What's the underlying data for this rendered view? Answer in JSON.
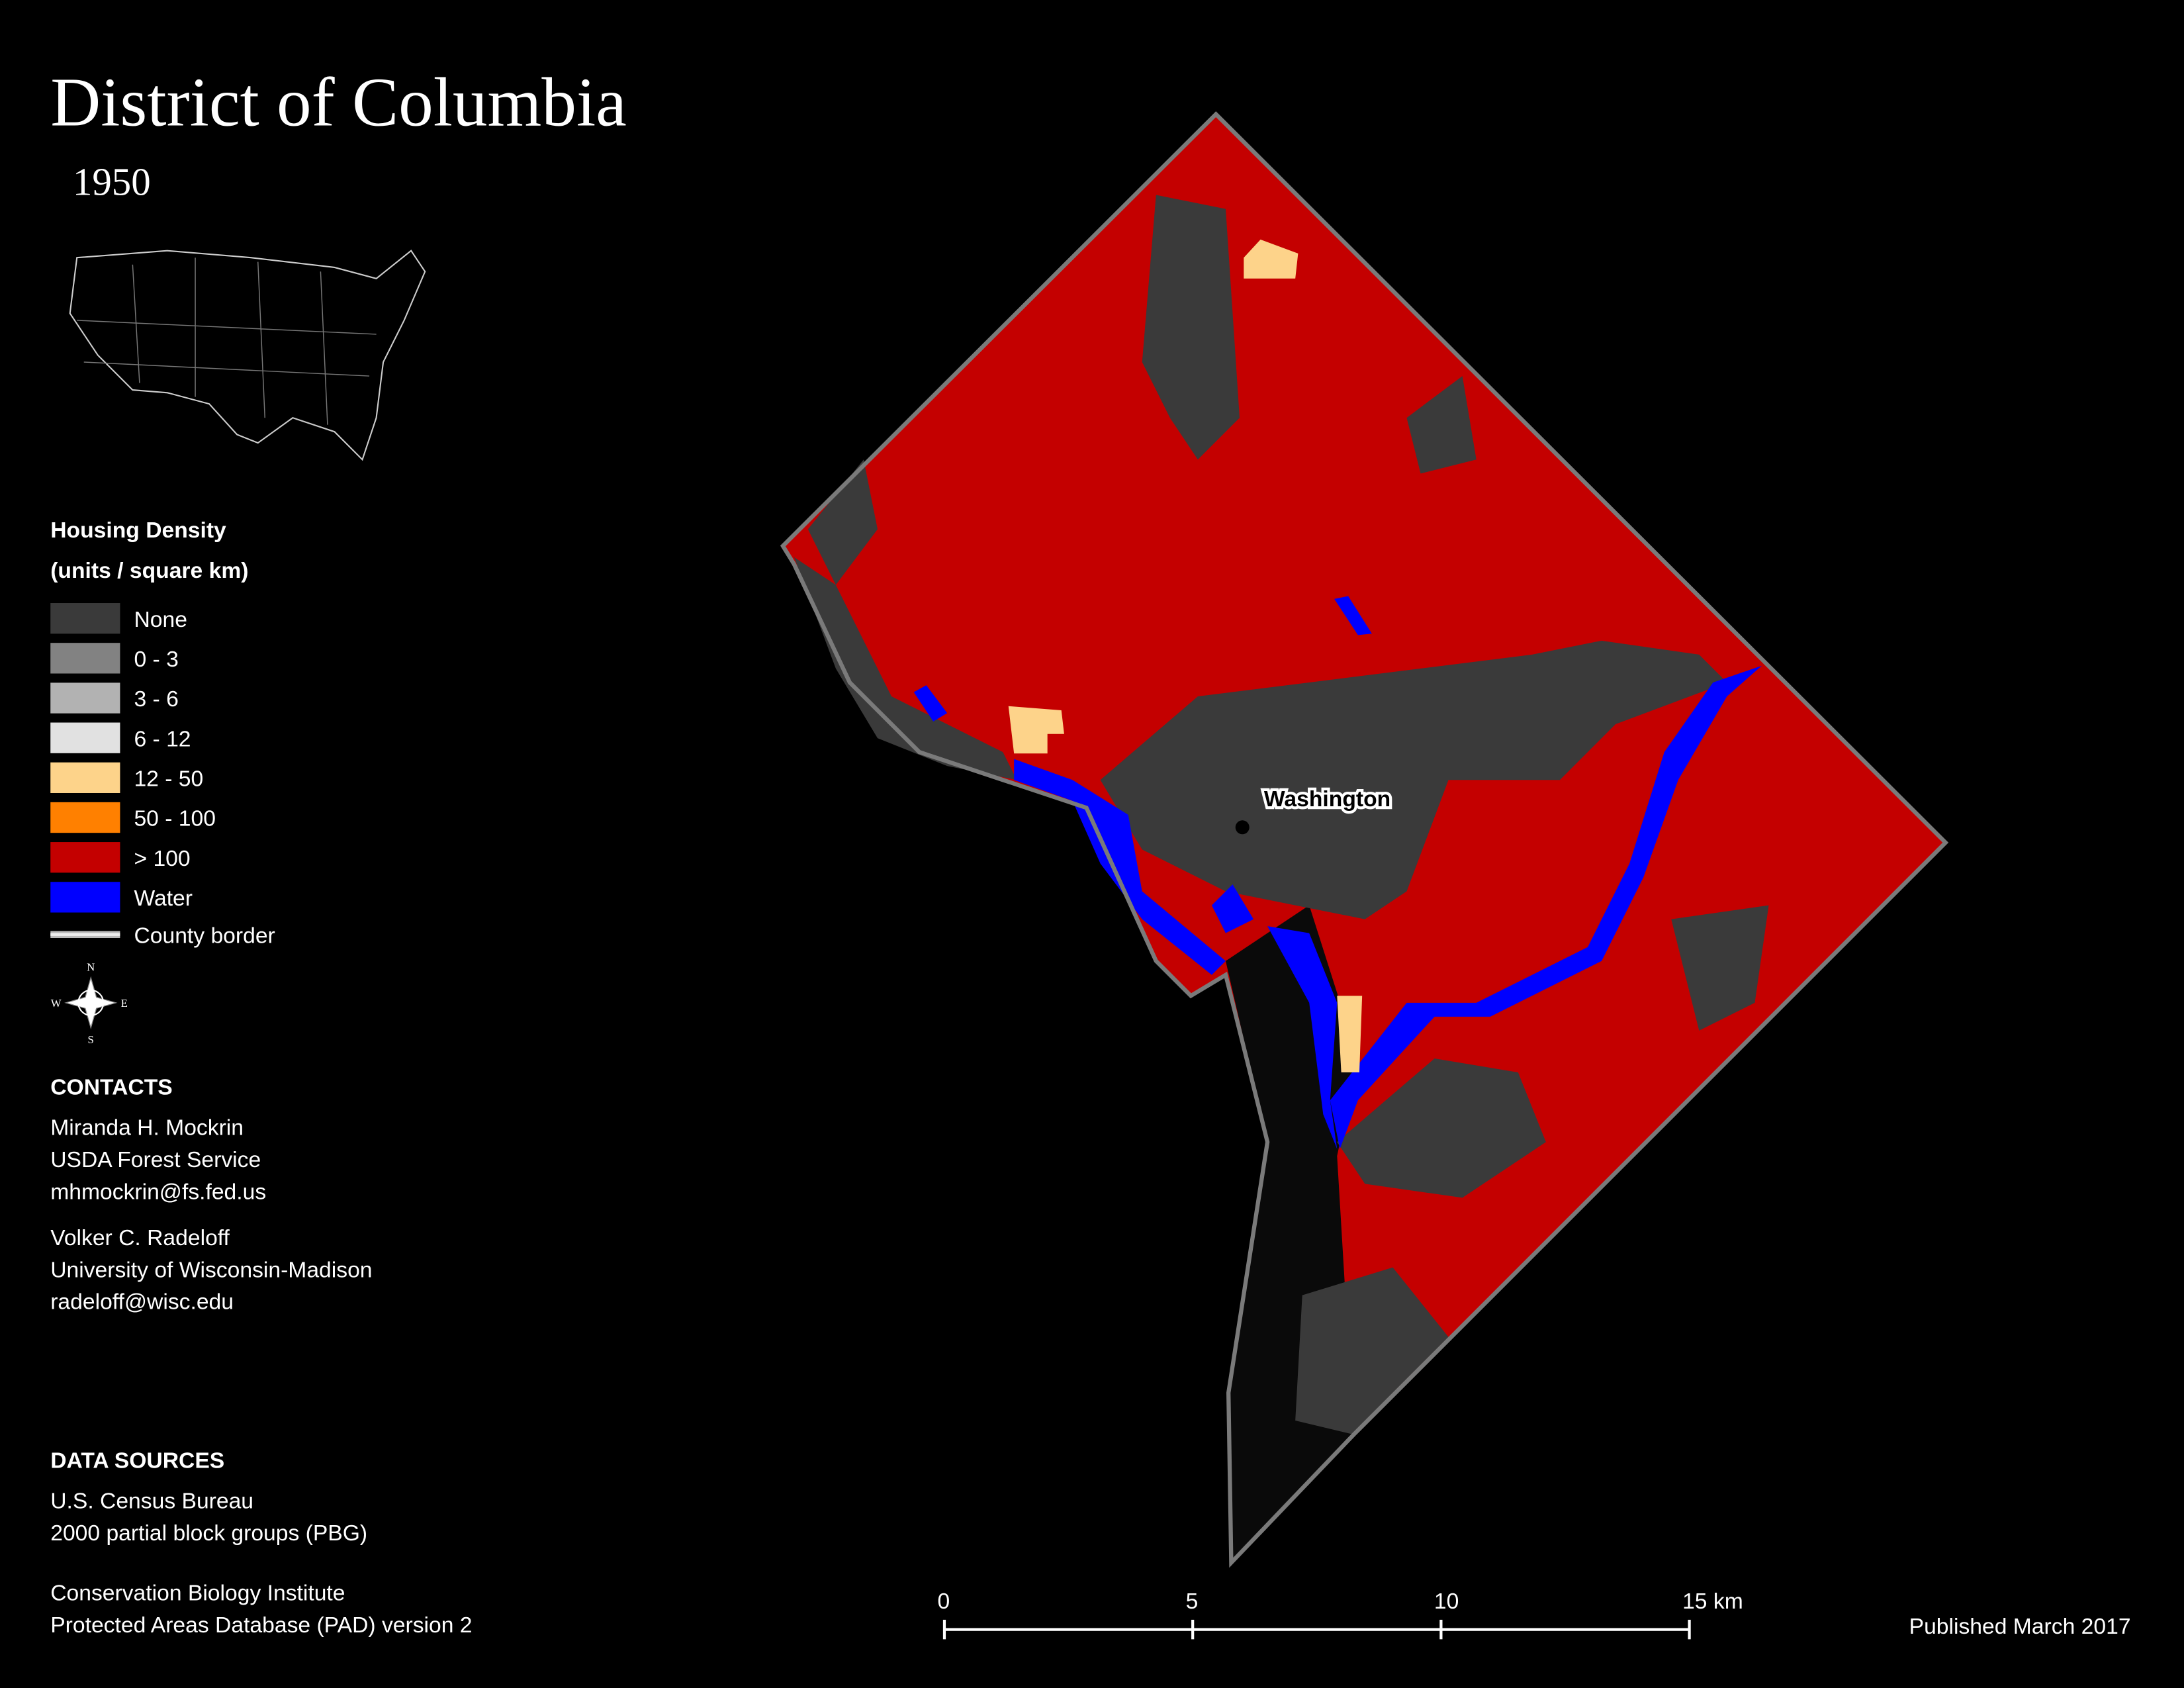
{
  "header": {
    "title": "District of Columbia",
    "subtitle": "1950"
  },
  "legend": {
    "title": "Housing Density",
    "units": "(units / square km)",
    "items": [
      {
        "label": "None",
        "color": "#3a3a3a"
      },
      {
        "label": "0 - 3",
        "color": "#828282"
      },
      {
        "label": "3 - 6",
        "color": "#b2b2b2"
      },
      {
        "label": "6 - 12",
        "color": "#e1e1e1"
      },
      {
        "label": "12 - 50",
        "color": "#fdd38a"
      },
      {
        "label": "50 - 100",
        "color": "#ff8000"
      },
      {
        "label": "> 100",
        "color": "#c40000"
      },
      {
        "label": "Water",
        "color": "#0000ff"
      }
    ],
    "border_label": "County border"
  },
  "compass": {
    "n": "N",
    "e": "E",
    "s": "S",
    "w": "W"
  },
  "contacts": {
    "heading": "CONTACTS",
    "people": [
      [
        "Miranda H. Mockrin",
        "USDA Forest Service",
        "mhmockrin@fs.fed.us"
      ],
      [
        "Volker C. Radeloff",
        "University of Wisconsin-Madison",
        "radeloff@wisc.edu"
      ]
    ]
  },
  "data_sources": {
    "heading": "DATA SOURCES",
    "groups": [
      [
        "U.S. Census Bureau",
        "2000 partial block groups (PBG)"
      ],
      [
        "Conservation Biology Institute",
        "Protected Areas Database (PAD) version 2"
      ]
    ]
  },
  "map": {
    "place_label": "Washington"
  },
  "scale_bar": {
    "labels": [
      "0",
      "5",
      "10",
      "15 km"
    ]
  },
  "footer": {
    "published": "Published March 2017"
  }
}
